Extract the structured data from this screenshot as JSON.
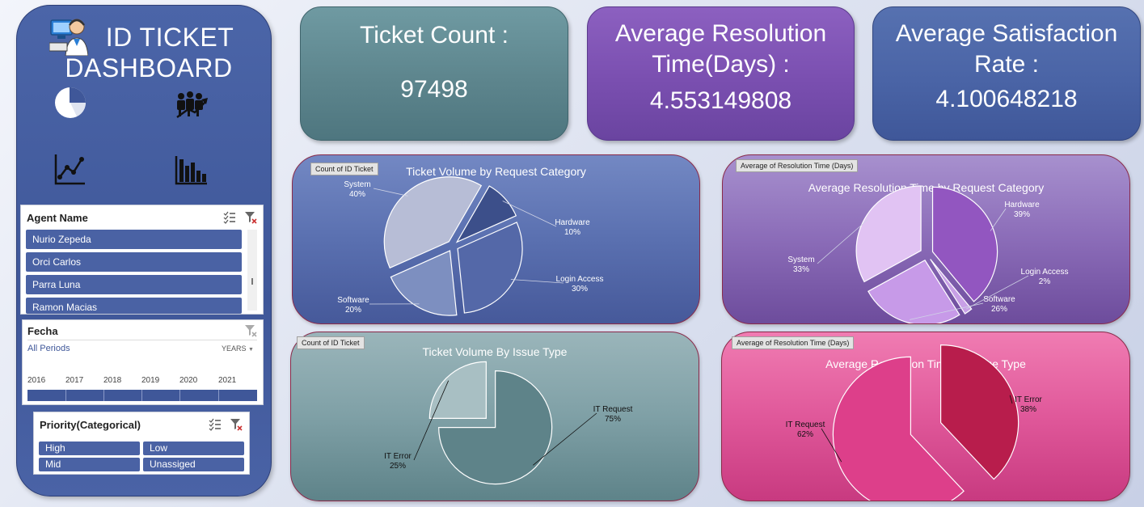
{
  "sidebar": {
    "title_line1": "ID TICKET",
    "title_line2": "DASHBOARD",
    "logo_icon": "support-agent-icon",
    "nav_icons": [
      "pie-chart-icon",
      "team-growth-icon",
      "line-chart-icon",
      "bar-chart-icon"
    ]
  },
  "agent_slicer": {
    "title": "Agent Name",
    "items": [
      "Nurio Zepeda",
      "Orci Carlos",
      "Parra Luna",
      "Ramon Macias"
    ]
  },
  "date_slicer": {
    "title": "Fecha",
    "period_label": "All Periods",
    "granularity": "YEARS",
    "years": [
      "2016",
      "2017",
      "2018",
      "2019",
      "2020",
      "2021"
    ]
  },
  "priority_slicer": {
    "title": "Priority(Categorical)",
    "items": [
      "High",
      "Low",
      "Mid",
      "Unassiged"
    ]
  },
  "kpis": {
    "ticket_count_title": "Ticket Count :",
    "ticket_count_value": "97498",
    "avg_resolution_title_l1": "Average Resolution",
    "avg_resolution_title_l2": "Time(Days) :",
    "avg_resolution_value": "4.553149808",
    "avg_satisfaction_title_l1": "Average Satisfaction",
    "avg_satisfaction_title_l2": "Rate :",
    "avg_satisfaction_value": "4.100648218"
  },
  "chart_data": [
    {
      "type": "pie",
      "field": "Count of ID Ticket",
      "title": "Ticket Volume by Request Category",
      "categories": [
        "Hardware",
        "Login Access",
        "Software",
        "System"
      ],
      "values": [
        10,
        30,
        20,
        40
      ],
      "labels": [
        "10%",
        "30%",
        "20%",
        "40%"
      ],
      "colors": [
        "#3c4f8a",
        "#5468a8",
        "#7d8fc0",
        "#b7bdd6"
      ]
    },
    {
      "type": "pie",
      "field": "Average of Resolution Time (Days)",
      "title": "Average Resolution Time  by Request Category",
      "categories": [
        "Hardware",
        "Login Access",
        "Software",
        "System"
      ],
      "values": [
        39,
        2,
        26,
        33
      ],
      "labels": [
        "39%",
        "2%",
        "26%",
        "33%"
      ],
      "colors": [
        "#9256c0",
        "#c8a0e6",
        "#c79ae8",
        "#e1c3f3"
      ]
    },
    {
      "type": "pie",
      "field": "Count of ID Ticket",
      "title": "Ticket Volume By Issue Type",
      "categories": [
        "IT Request",
        "IT Error"
      ],
      "values": [
        75,
        25
      ],
      "labels": [
        "75%",
        "25%"
      ],
      "colors": [
        "#5e8389",
        "#a8bfc3"
      ]
    },
    {
      "type": "pie",
      "field": "Average of Resolution Time (Days)",
      "title": "Average Resolution Time By Issue Type",
      "categories": [
        "IT Error",
        "IT Request"
      ],
      "values": [
        38,
        62
      ],
      "labels": [
        "38%",
        "62%"
      ],
      "colors": [
        "#b81d4c",
        "#dd3f8a"
      ]
    }
  ]
}
